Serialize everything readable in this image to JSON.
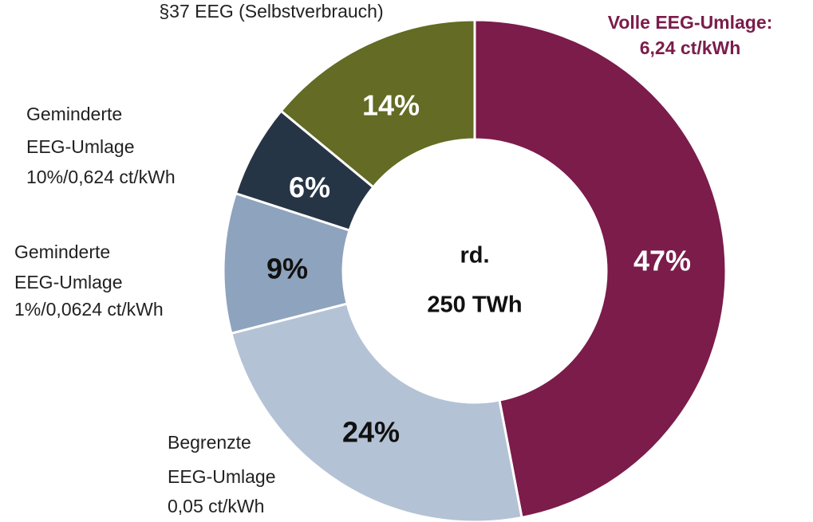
{
  "chart_data": {
    "type": "donut",
    "categories": [
      [
        "Volle EEG-Umlage:",
        "6,24 ct/kWh"
      ],
      [
        "Begrenzte",
        "EEG-Umlage",
        "0,05 ct/kWh"
      ],
      [
        "Geminderte",
        "EEG-Umlage",
        "1%/0,0624 ct/kWh"
      ],
      [
        "Geminderte",
        "EEG-Umlage",
        "10%/0,624 ct/kWh"
      ],
      [
        "§37 EEG (Selbstverbrauch)"
      ]
    ],
    "values": [
      47,
      24,
      9,
      6,
      14
    ],
    "value_labels": [
      "47%",
      "24%",
      "9%",
      "6%",
      "14%"
    ],
    "colors": [
      "#7b1c4b",
      "#b4c2d5",
      "#8ea3bd",
      "#263545",
      "#636b24"
    ],
    "highlight": 0,
    "center_text": [
      "rd.",
      "250 TWh"
    ]
  }
}
